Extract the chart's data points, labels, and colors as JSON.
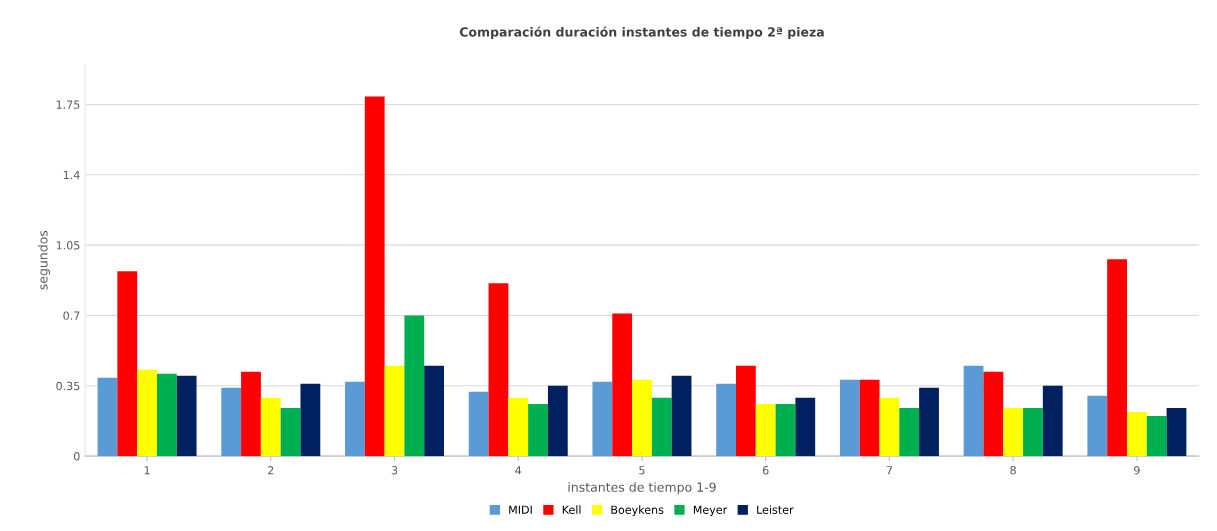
{
  "chart_data": {
    "type": "bar",
    "title": "Comparación duración instantes de tiempo 2ª pieza",
    "xlabel": "instantes de tiempo 1-9",
    "ylabel": "segundos",
    "categories": [
      "1",
      "2",
      "3",
      "4",
      "5",
      "6",
      "7",
      "8",
      "9"
    ],
    "series": [
      {
        "name": "MIDI",
        "color": "#5b9bd5",
        "values": [
          0.39,
          0.34,
          0.37,
          0.32,
          0.37,
          0.36,
          0.38,
          0.45,
          0.3
        ]
      },
      {
        "name": "Kell",
        "color": "#ff0000",
        "values": [
          0.92,
          0.42,
          1.79,
          0.86,
          0.71,
          0.45,
          0.38,
          0.42,
          0.98
        ]
      },
      {
        "name": "Boeykens",
        "color": "#ffff00",
        "values": [
          0.43,
          0.29,
          0.45,
          0.29,
          0.38,
          0.26,
          0.29,
          0.24,
          0.22
        ]
      },
      {
        "name": "Meyer",
        "color": "#00b050",
        "values": [
          0.41,
          0.24,
          0.7,
          0.26,
          0.29,
          0.26,
          0.24,
          0.24,
          0.2
        ]
      },
      {
        "name": "Leister",
        "color": "#002060",
        "values": [
          0.4,
          0.36,
          0.45,
          0.35,
          0.4,
          0.29,
          0.34,
          0.35,
          0.24
        ]
      }
    ],
    "ylim": [
      0,
      1.95
    ],
    "yticks": [
      0,
      0.35,
      0.7,
      1.05,
      1.4,
      1.75
    ],
    "grid": "y",
    "legend": "bottom"
  }
}
